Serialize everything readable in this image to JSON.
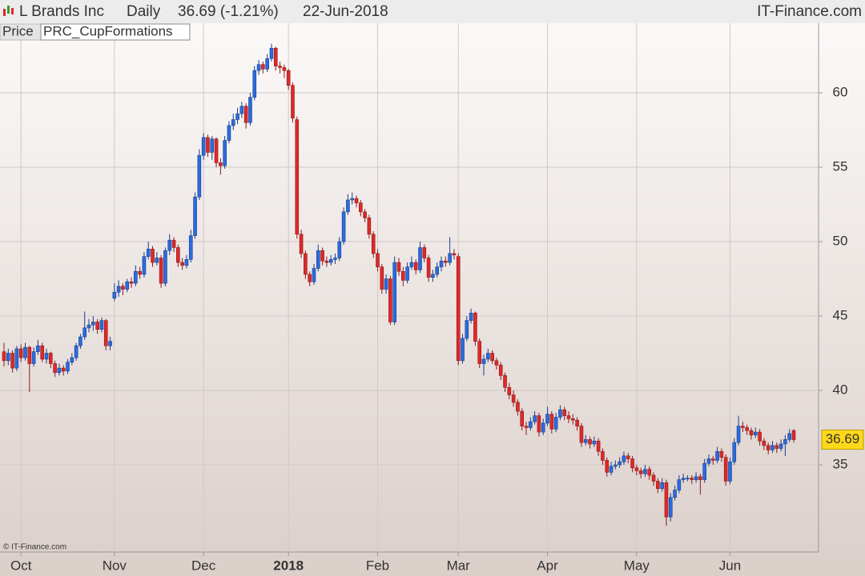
{
  "header": {
    "name": "L Brands Inc",
    "period": "Daily",
    "change": "36.69 (-1.21%)",
    "date": "22-Jun-2018",
    "brand": "IT-Finance.com"
  },
  "tabs": [
    "Price",
    "PRC_CupFormations"
  ],
  "copyright": "© IT-Finance.com",
  "chart_data": {
    "type": "candlestick",
    "up_color": "#2a6be0",
    "down_color": "#e02828",
    "ylim": [
      29.14,
      64.68
    ],
    "yticks": [
      35,
      40,
      45,
      50,
      55,
      60
    ],
    "grid": true,
    "categories": [
      null,
      null,
      null,
      null,
      "Oct",
      null,
      null,
      null,
      null,
      null,
      null,
      null,
      null,
      null,
      null,
      null,
      null,
      null,
      null,
      null,
      null,
      null,
      null,
      null,
      null,
      null,
      "Nov",
      null,
      null,
      null,
      null,
      null,
      null,
      null,
      null,
      null,
      null,
      null,
      null,
      null,
      null,
      null,
      null,
      null,
      null,
      null,
      null,
      "Dec",
      null,
      null,
      null,
      null,
      null,
      null,
      null,
      null,
      null,
      null,
      null,
      null,
      null,
      null,
      null,
      null,
      null,
      null,
      null,
      "2018",
      null,
      null,
      null,
      null,
      null,
      null,
      null,
      null,
      null,
      null,
      null,
      null,
      null,
      null,
      null,
      null,
      null,
      null,
      null,
      null,
      "Feb",
      null,
      null,
      null,
      null,
      null,
      null,
      null,
      null,
      null,
      null,
      null,
      null,
      null,
      null,
      null,
      null,
      null,
      null,
      "Mar",
      null,
      null,
      null,
      null,
      null,
      null,
      null,
      null,
      null,
      null,
      null,
      null,
      null,
      null,
      null,
      null,
      null,
      null,
      null,
      null,
      "Apr",
      null,
      null,
      null,
      null,
      null,
      null,
      null,
      null,
      null,
      null,
      null,
      null,
      null,
      null,
      null,
      null,
      null,
      null,
      null,
      null,
      "May",
      null,
      null,
      null,
      null,
      null,
      null,
      null,
      null,
      null,
      null,
      null,
      null,
      null,
      null,
      null,
      null,
      null,
      null,
      null,
      null,
      null,
      "Jun",
      null,
      null,
      null,
      null,
      null,
      null,
      null,
      null,
      null,
      null,
      null,
      null,
      null,
      null,
      null
    ],
    "ohlc": [
      [
        42.6,
        43.2,
        41.6,
        42.0
      ],
      [
        42.0,
        42.8,
        41.7,
        42.5
      ],
      [
        42.5,
        42.7,
        41.2,
        41.5
      ],
      [
        41.5,
        43.0,
        41.3,
        42.8
      ],
      [
        42.8,
        43.1,
        41.9,
        42.2
      ],
      [
        42.2,
        43.2,
        42.0,
        42.9
      ],
      [
        42.9,
        43.0,
        39.9,
        41.8
      ],
      [
        41.8,
        42.9,
        41.6,
        42.6
      ],
      [
        42.6,
        43.4,
        42.4,
        43.0
      ],
      [
        43.0,
        43.2,
        41.9,
        42.1
      ],
      [
        42.1,
        42.8,
        41.8,
        42.5
      ],
      [
        42.5,
        42.6,
        41.5,
        41.8
      ],
      [
        41.8,
        42.0,
        40.9,
        41.2
      ],
      [
        41.2,
        41.8,
        41.0,
        41.5
      ],
      [
        41.5,
        41.7,
        41.0,
        41.3
      ],
      [
        41.3,
        42.1,
        41.1,
        41.9
      ],
      [
        41.9,
        42.5,
        41.7,
        42.2
      ],
      [
        42.2,
        43.2,
        42.0,
        43.0
      ],
      [
        43.0,
        43.8,
        42.8,
        43.6
      ],
      [
        43.6,
        45.3,
        43.4,
        44.2
      ],
      [
        44.2,
        44.8,
        43.9,
        44.4
      ],
      [
        44.4,
        45.0,
        44.0,
        44.6
      ],
      [
        44.6,
        44.8,
        43.8,
        44.1
      ],
      [
        44.1,
        44.9,
        43.9,
        44.7
      ],
      [
        44.7,
        44.8,
        42.7,
        43.0
      ],
      [
        43.0,
        43.6,
        42.7,
        43.3
      ],
      [
        46.2,
        47.2,
        46.0,
        46.6
      ],
      [
        46.6,
        47.4,
        46.3,
        47.0
      ],
      [
        47.0,
        47.2,
        46.4,
        46.8
      ],
      [
        46.8,
        47.5,
        46.6,
        47.3
      ],
      [
        47.3,
        47.6,
        46.9,
        47.2
      ],
      [
        47.2,
        48.4,
        47.0,
        48.0
      ],
      [
        48.0,
        48.3,
        47.5,
        47.8
      ],
      [
        47.8,
        49.3,
        47.6,
        49.0
      ],
      [
        49.0,
        50.0,
        48.8,
        49.5
      ],
      [
        49.5,
        49.7,
        48.3,
        48.6
      ],
      [
        48.6,
        49.3,
        48.4,
        48.9
      ],
      [
        48.9,
        49.1,
        46.9,
        47.2
      ],
      [
        47.2,
        49.6,
        47.0,
        49.4
      ],
      [
        49.4,
        50.5,
        49.1,
        50.1
      ],
      [
        50.1,
        50.3,
        49.3,
        49.6
      ],
      [
        49.6,
        49.8,
        48.3,
        48.6
      ],
      [
        48.6,
        48.9,
        48.1,
        48.4
      ],
      [
        48.4,
        49.1,
        48.2,
        48.8
      ],
      [
        48.8,
        50.8,
        48.6,
        50.4
      ],
      [
        50.4,
        53.3,
        50.2,
        53.0
      ],
      [
        53.0,
        56.2,
        52.8,
        55.8
      ],
      [
        55.8,
        57.3,
        55.5,
        57.0
      ],
      [
        57.0,
        57.2,
        55.7,
        56.0
      ],
      [
        56.0,
        57.1,
        55.5,
        56.9
      ],
      [
        56.9,
        57.0,
        55.0,
        55.3
      ],
      [
        55.3,
        55.6,
        54.5,
        55.1
      ],
      [
        55.1,
        57.1,
        54.9,
        56.8
      ],
      [
        56.8,
        58.1,
        56.6,
        57.8
      ],
      [
        57.8,
        58.6,
        57.5,
        58.2
      ],
      [
        58.2,
        59.0,
        57.9,
        58.6
      ],
      [
        58.6,
        59.4,
        58.3,
        59.1
      ],
      [
        59.1,
        59.3,
        57.6,
        58.0
      ],
      [
        58.0,
        60.0,
        57.8,
        59.7
      ],
      [
        59.7,
        61.8,
        59.5,
        61.5
      ],
      [
        61.5,
        62.2,
        61.2,
        61.9
      ],
      [
        61.9,
        62.1,
        61.3,
        61.6
      ],
      [
        61.6,
        62.6,
        61.4,
        62.3
      ],
      [
        62.3,
        63.3,
        62.1,
        63.0
      ],
      [
        63.0,
        63.1,
        61.5,
        61.8
      ],
      [
        61.8,
        62.1,
        61.3,
        61.7
      ],
      [
        61.7,
        61.9,
        61.0,
        61.5
      ],
      [
        61.5,
        61.6,
        60.2,
        60.5
      ],
      [
        60.5,
        60.7,
        58.0,
        58.3
      ],
      [
        58.2,
        58.4,
        50.2,
        50.5
      ],
      [
        50.5,
        50.8,
        48.9,
        49.2
      ],
      [
        49.2,
        49.4,
        47.5,
        47.8
      ],
      [
        47.8,
        48.0,
        47.0,
        47.3
      ],
      [
        47.3,
        48.5,
        47.1,
        48.2
      ],
      [
        48.2,
        49.8,
        48.0,
        49.4
      ],
      [
        49.4,
        49.6,
        48.4,
        48.7
      ],
      [
        48.7,
        49.0,
        48.3,
        48.6
      ],
      [
        48.6,
        49.1,
        48.4,
        48.8
      ],
      [
        48.8,
        49.2,
        48.5,
        48.9
      ],
      [
        48.9,
        50.3,
        48.7,
        50.0
      ],
      [
        50.0,
        52.3,
        49.8,
        52.0
      ],
      [
        52.0,
        53.2,
        51.8,
        52.8
      ],
      [
        52.8,
        53.3,
        52.5,
        52.9
      ],
      [
        52.9,
        53.1,
        52.3,
        52.6
      ],
      [
        52.6,
        52.8,
        51.7,
        52.0
      ],
      [
        52.0,
        52.2,
        51.3,
        51.6
      ],
      [
        51.6,
        51.8,
        50.2,
        50.5
      ],
      [
        50.5,
        50.7,
        48.9,
        49.2
      ],
      [
        49.2,
        49.5,
        48.0,
        48.3
      ],
      [
        48.3,
        48.5,
        46.5,
        46.8
      ],
      [
        46.8,
        47.8,
        46.5,
        47.5
      ],
      [
        47.5,
        47.7,
        44.4,
        44.6
      ],
      [
        44.6,
        49.0,
        44.4,
        48.6
      ],
      [
        48.6,
        48.9,
        47.7,
        48.0
      ],
      [
        48.0,
        48.3,
        47.0,
        47.4
      ],
      [
        47.4,
        48.6,
        47.2,
        48.3
      ],
      [
        48.3,
        49.0,
        48.1,
        48.6
      ],
      [
        48.6,
        48.8,
        47.8,
        48.1
      ],
      [
        48.1,
        50.0,
        47.9,
        49.6
      ],
      [
        49.6,
        49.8,
        48.6,
        48.9
      ],
      [
        48.9,
        49.1,
        47.3,
        47.6
      ],
      [
        47.6,
        48.1,
        47.3,
        47.8
      ],
      [
        47.8,
        48.6,
        47.6,
        48.3
      ],
      [
        48.3,
        49.0,
        48.0,
        48.7
      ],
      [
        48.7,
        49.0,
        48.3,
        48.6
      ],
      [
        48.6,
        50.3,
        48.4,
        49.2
      ],
      [
        49.2,
        49.5,
        48.8,
        49.1
      ],
      [
        49.0,
        49.2,
        41.7,
        42.0
      ],
      [
        42.0,
        43.8,
        41.8,
        43.5
      ],
      [
        43.5,
        45.0,
        43.3,
        44.7
      ],
      [
        44.7,
        45.5,
        44.5,
        45.2
      ],
      [
        45.2,
        45.3,
        43.0,
        43.3
      ],
      [
        43.3,
        43.5,
        41.5,
        41.8
      ],
      [
        41.8,
        42.4,
        41.0,
        42.1
      ],
      [
        42.1,
        42.8,
        41.9,
        42.5
      ],
      [
        42.5,
        42.7,
        41.8,
        42.0
      ],
      [
        42.0,
        42.2,
        41.4,
        41.7
      ],
      [
        41.7,
        41.9,
        40.7,
        41.0
      ],
      [
        41.0,
        41.2,
        39.9,
        40.2
      ],
      [
        40.2,
        40.5,
        39.4,
        39.7
      ],
      [
        39.7,
        40.0,
        38.9,
        39.2
      ],
      [
        39.2,
        39.4,
        38.3,
        38.6
      ],
      [
        38.6,
        38.8,
        37.3,
        37.6
      ],
      [
        37.6,
        37.9,
        37.0,
        37.5
      ],
      [
        37.5,
        38.2,
        37.3,
        37.9
      ],
      [
        37.9,
        38.6,
        37.7,
        38.3
      ],
      [
        38.3,
        38.5,
        36.9,
        37.2
      ],
      [
        37.2,
        38.1,
        37.0,
        37.8
      ],
      [
        37.8,
        38.9,
        37.6,
        38.4
      ],
      [
        38.4,
        38.6,
        37.1,
        37.4
      ],
      [
        37.4,
        38.5,
        37.2,
        38.2
      ],
      [
        38.2,
        39.0,
        38.0,
        38.7
      ],
      [
        38.7,
        38.9,
        38.0,
        38.3
      ],
      [
        38.3,
        38.6,
        37.8,
        38.1
      ],
      [
        38.1,
        38.4,
        37.7,
        38.0
      ],
      [
        38.0,
        38.2,
        37.3,
        37.6
      ],
      [
        37.6,
        37.8,
        36.2,
        36.5
      ],
      [
        36.5,
        37.0,
        36.3,
        36.7
      ],
      [
        36.7,
        36.9,
        36.1,
        36.4
      ],
      [
        36.4,
        36.9,
        36.2,
        36.6
      ],
      [
        36.6,
        36.8,
        35.6,
        35.9
      ],
      [
        35.9,
        36.1,
        35.0,
        35.3
      ],
      [
        35.3,
        35.5,
        34.2,
        34.5
      ],
      [
        34.5,
        35.2,
        34.3,
        34.9
      ],
      [
        34.9,
        35.3,
        34.7,
        35.0
      ],
      [
        35.0,
        35.5,
        34.8,
        35.2
      ],
      [
        35.2,
        35.9,
        35.0,
        35.6
      ],
      [
        35.6,
        35.8,
        35.1,
        35.4
      ],
      [
        35.4,
        35.6,
        34.5,
        34.8
      ],
      [
        34.8,
        35.0,
        34.3,
        34.6
      ],
      [
        34.6,
        34.8,
        34.1,
        34.4
      ],
      [
        34.4,
        35.0,
        34.2,
        34.7
      ],
      [
        34.7,
        34.9,
        34.0,
        34.3
      ],
      [
        34.3,
        34.5,
        33.6,
        33.9
      ],
      [
        33.9,
        34.1,
        33.1,
        33.4
      ],
      [
        33.4,
        34.1,
        33.2,
        33.8
      ],
      [
        33.8,
        34.0,
        30.9,
        31.5
      ],
      [
        31.5,
        33.1,
        31.2,
        32.8
      ],
      [
        32.8,
        33.6,
        32.6,
        33.3
      ],
      [
        33.3,
        34.3,
        33.1,
        34.0
      ],
      [
        34.0,
        34.4,
        33.8,
        34.1
      ],
      [
        34.1,
        34.3,
        33.9,
        34.1
      ],
      [
        34.1,
        34.3,
        33.7,
        34.0
      ],
      [
        34.0,
        34.5,
        33.8,
        34.2
      ],
      [
        34.2,
        34.4,
        33.0,
        34.0
      ],
      [
        34.0,
        35.4,
        33.8,
        35.1
      ],
      [
        35.1,
        35.7,
        34.9,
        35.4
      ],
      [
        35.4,
        35.6,
        35.0,
        35.3
      ],
      [
        35.3,
        36.2,
        35.1,
        35.9
      ],
      [
        35.9,
        36.1,
        35.2,
        35.5
      ],
      [
        35.5,
        35.7,
        33.6,
        33.9
      ],
      [
        33.9,
        35.5,
        33.7,
        35.2
      ],
      [
        35.2,
        36.8,
        35.0,
        36.5
      ],
      [
        36.5,
        38.3,
        36.3,
        37.6
      ],
      [
        37.6,
        37.9,
        37.2,
        37.5
      ],
      [
        37.5,
        37.7,
        37.0,
        37.3
      ],
      [
        37.3,
        37.5,
        36.7,
        37.0
      ],
      [
        37.0,
        37.5,
        36.8,
        37.2
      ],
      [
        37.2,
        37.4,
        36.3,
        36.6
      ],
      [
        36.6,
        36.8,
        36.0,
        36.3
      ],
      [
        36.3,
        36.5,
        35.7,
        36.0
      ],
      [
        36.0,
        36.6,
        35.8,
        36.3
      ],
      [
        36.3,
        36.5,
        35.8,
        36.1
      ],
      [
        36.1,
        36.7,
        35.9,
        36.4
      ],
      [
        36.4,
        37.0,
        35.6,
        36.7
      ],
      [
        36.7,
        37.4,
        36.5,
        37.1
      ],
      [
        37.3,
        37.4,
        36.5,
        36.69
      ]
    ]
  }
}
